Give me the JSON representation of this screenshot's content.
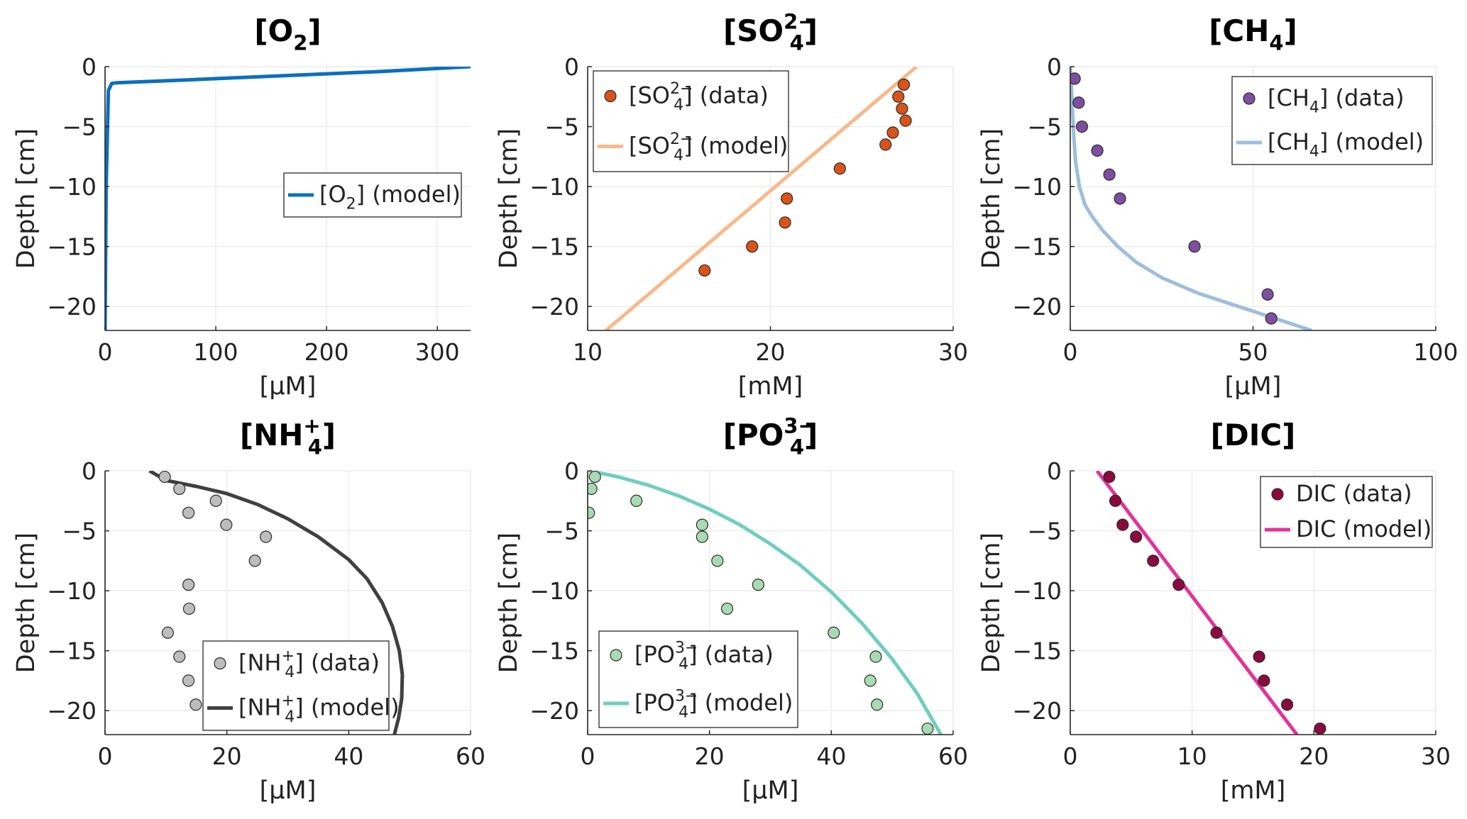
{
  "chart_data": [
    {
      "id": "o2",
      "type": "line",
      "title": "[O2]",
      "xlabel": "[μM]",
      "ylabel": "Depth [cm]",
      "xlim": [
        0,
        330
      ],
      "ylim": [
        -22,
        0
      ],
      "xticks": [
        0,
        100,
        200,
        300
      ],
      "yticks": [
        0,
        -5,
        -10,
        -15,
        -20
      ],
      "legend_position": "middle-right",
      "series": [
        {
          "name": "[O2] (model)",
          "kind": "line",
          "color": "#0b6fbd",
          "x": [
            0,
            1,
            3,
            6,
            10,
            50,
            100,
            150,
            200,
            250,
            300,
            330
          ],
          "y": [
            -22,
            -10,
            -2,
            -1.4,
            -1.35,
            -1.2,
            -1.0,
            -0.8,
            -0.6,
            -0.4,
            -0.15,
            0
          ]
        }
      ]
    },
    {
      "id": "so4",
      "type": "scatter+line",
      "title": "[SO4 2−]",
      "xlabel": "[mM]",
      "ylabel": "Depth [cm]",
      "xlim": [
        10,
        30
      ],
      "ylim": [
        -22,
        0
      ],
      "xticks": [
        10,
        20,
        30
      ],
      "yticks": [
        0,
        -5,
        -10,
        -15,
        -20
      ],
      "legend_position": "top-left",
      "series": [
        {
          "name": "[SO4 2−] (data)",
          "kind": "scatter",
          "color": "#d95319",
          "x": [
            27.3,
            27.0,
            27.2,
            27.4,
            26.7,
            26.3,
            23.8,
            20.9,
            20.8,
            19.0,
            16.4
          ],
          "y": [
            -1.5,
            -2.5,
            -3.5,
            -4.5,
            -5.5,
            -6.5,
            -8.5,
            -11,
            -13,
            -15,
            -17
          ]
        },
        {
          "name": "[SO4 2−] (model)",
          "kind": "line",
          "color": "#f7b98a",
          "x": [
            28.0,
            11.0
          ],
          "y": [
            0,
            -22
          ]
        }
      ]
    },
    {
      "id": "ch4",
      "type": "scatter+line",
      "title": "[CH4]",
      "xlabel": "[μM]",
      "ylabel": "Depth [cm]",
      "xlim": [
        0,
        100
      ],
      "ylim": [
        -22,
        0
      ],
      "xticks": [
        0,
        50,
        100
      ],
      "yticks": [
        0,
        -5,
        -10,
        -15,
        -20
      ],
      "legend_position": "top-right",
      "series": [
        {
          "name": "[CH4] (data)",
          "kind": "scatter",
          "color": "#7e4ea0",
          "x": [
            1.2,
            2.3,
            3.2,
            7.4,
            10.7,
            13.6,
            34.0,
            54.0,
            55.0
          ],
          "y": [
            -1,
            -3,
            -5,
            -7,
            -9,
            -11,
            -15,
            -19,
            -21
          ]
        },
        {
          "name": "[CH4] (model)",
          "kind": "line",
          "color": "#9dbedc",
          "x": [
            0,
            0.3,
            0.6,
            1,
            1.5,
            2.5,
            4,
            6,
            9,
            13,
            18,
            25,
            35,
            45,
            55,
            66
          ],
          "y": [
            0,
            -1.5,
            -3.5,
            -6,
            -8,
            -10,
            -11.5,
            -12.5,
            -13.7,
            -15,
            -16.3,
            -17.6,
            -18.9,
            -19.9,
            -20.9,
            -22
          ]
        }
      ]
    },
    {
      "id": "nh4",
      "type": "scatter+line",
      "title": "[NH4+]",
      "xlabel": "[μM]",
      "ylabel": "Depth [cm]",
      "xlim": [
        0,
        60
      ],
      "ylim": [
        -22,
        0
      ],
      "xticks": [
        0,
        20,
        40,
        60
      ],
      "yticks": [
        0,
        -5,
        -10,
        -15,
        -20
      ],
      "legend_position": "bottom-right",
      "series": [
        {
          "name": "[NH4+] (data)",
          "kind": "scatter",
          "color": "#bdbdbd",
          "x": [
            9.8,
            12.2,
            13.7,
            18.2,
            19.9,
            26.4,
            24.6,
            13.7,
            13.8,
            10.3,
            12.2,
            13.7,
            14.9
          ],
          "y": [
            -0.5,
            -1.5,
            -3.5,
            -2.5,
            -4.5,
            -5.5,
            -7.5,
            -9.5,
            -11.5,
            -13.5,
            -15.5,
            -17.5,
            -19.5
          ]
        },
        {
          "name": "[NH4+] (model)",
          "kind": "line",
          "color": "#404040",
          "x": [
            7.3,
            10,
            15,
            20,
            25,
            30,
            35,
            40,
            43,
            45.5,
            47.2,
            48.3,
            48.8,
            48.7,
            48.2,
            47.5
          ],
          "y": [
            0,
            -0.8,
            -1.3,
            -1.9,
            -2.8,
            -4,
            -5.5,
            -7.4,
            -9,
            -11,
            -13,
            -15,
            -17,
            -19,
            -20.6,
            -22
          ]
        }
      ]
    },
    {
      "id": "po4",
      "type": "scatter+line",
      "title": "[PO4 3−]",
      "xlabel": "[μM]",
      "ylabel": "Depth [cm]",
      "xlim": [
        0,
        60
      ],
      "ylim": [
        -22,
        0
      ],
      "xticks": [
        0,
        20,
        40,
        60
      ],
      "yticks": [
        0,
        -5,
        -10,
        -15,
        -20
      ],
      "legend_position": "bottom-left",
      "series": [
        {
          "name": "[PO4 3−] (data)",
          "kind": "scatter",
          "color": "#a8dbb3",
          "x": [
            1.2,
            0.6,
            0.2,
            8.0,
            18.8,
            18.8,
            21.3,
            22.9,
            28.0,
            40.4,
            47.3,
            46.4,
            47.5,
            55.8
          ],
          "y": [
            -0.5,
            -1.5,
            -3.5,
            -2.5,
            -4.5,
            -5.5,
            -7.5,
            -11.5,
            -9.5,
            -13.5,
            -15.5,
            -17.5,
            -19.5,
            -21.5
          ]
        },
        {
          "name": "[PO4 3−] (model)",
          "kind": "line",
          "color": "#6ecdbf",
          "x": [
            0.3,
            5,
            10,
            15,
            20,
            25,
            30,
            35,
            40,
            45,
            50,
            54,
            58
          ],
          "y": [
            0,
            -0.5,
            -1.2,
            -2.1,
            -3.2,
            -4.5,
            -6.1,
            -7.9,
            -10.1,
            -12.7,
            -15.7,
            -18.5,
            -22
          ]
        }
      ]
    },
    {
      "id": "dic",
      "type": "scatter+line",
      "title": "[DIC]",
      "xlabel": "[mM]",
      "ylabel": "Depth [cm]",
      "xlim": [
        0,
        30
      ],
      "ylim": [
        -22,
        0
      ],
      "xticks": [
        0,
        10,
        20,
        30
      ],
      "yticks": [
        0,
        -5,
        -10,
        -15,
        -20
      ],
      "legend_position": "top-right",
      "series": [
        {
          "name": "DIC (data)",
          "kind": "scatter",
          "color": "#8b0a3e",
          "x": [
            3.2,
            3.7,
            4.3,
            5.4,
            6.8,
            8.9,
            12.0,
            15.5,
            15.9,
            17.8,
            20.5
          ],
          "y": [
            -0.5,
            -2.5,
            -4.5,
            -5.5,
            -7.5,
            -9.5,
            -13.5,
            -15.5,
            -17.5,
            -19.5,
            -21.5
          ]
        },
        {
          "name": "DIC (model)",
          "kind": "line",
          "color": "#e3329a",
          "x": [
            2.2,
            18.6
          ],
          "y": [
            0,
            -22
          ]
        }
      ]
    }
  ]
}
